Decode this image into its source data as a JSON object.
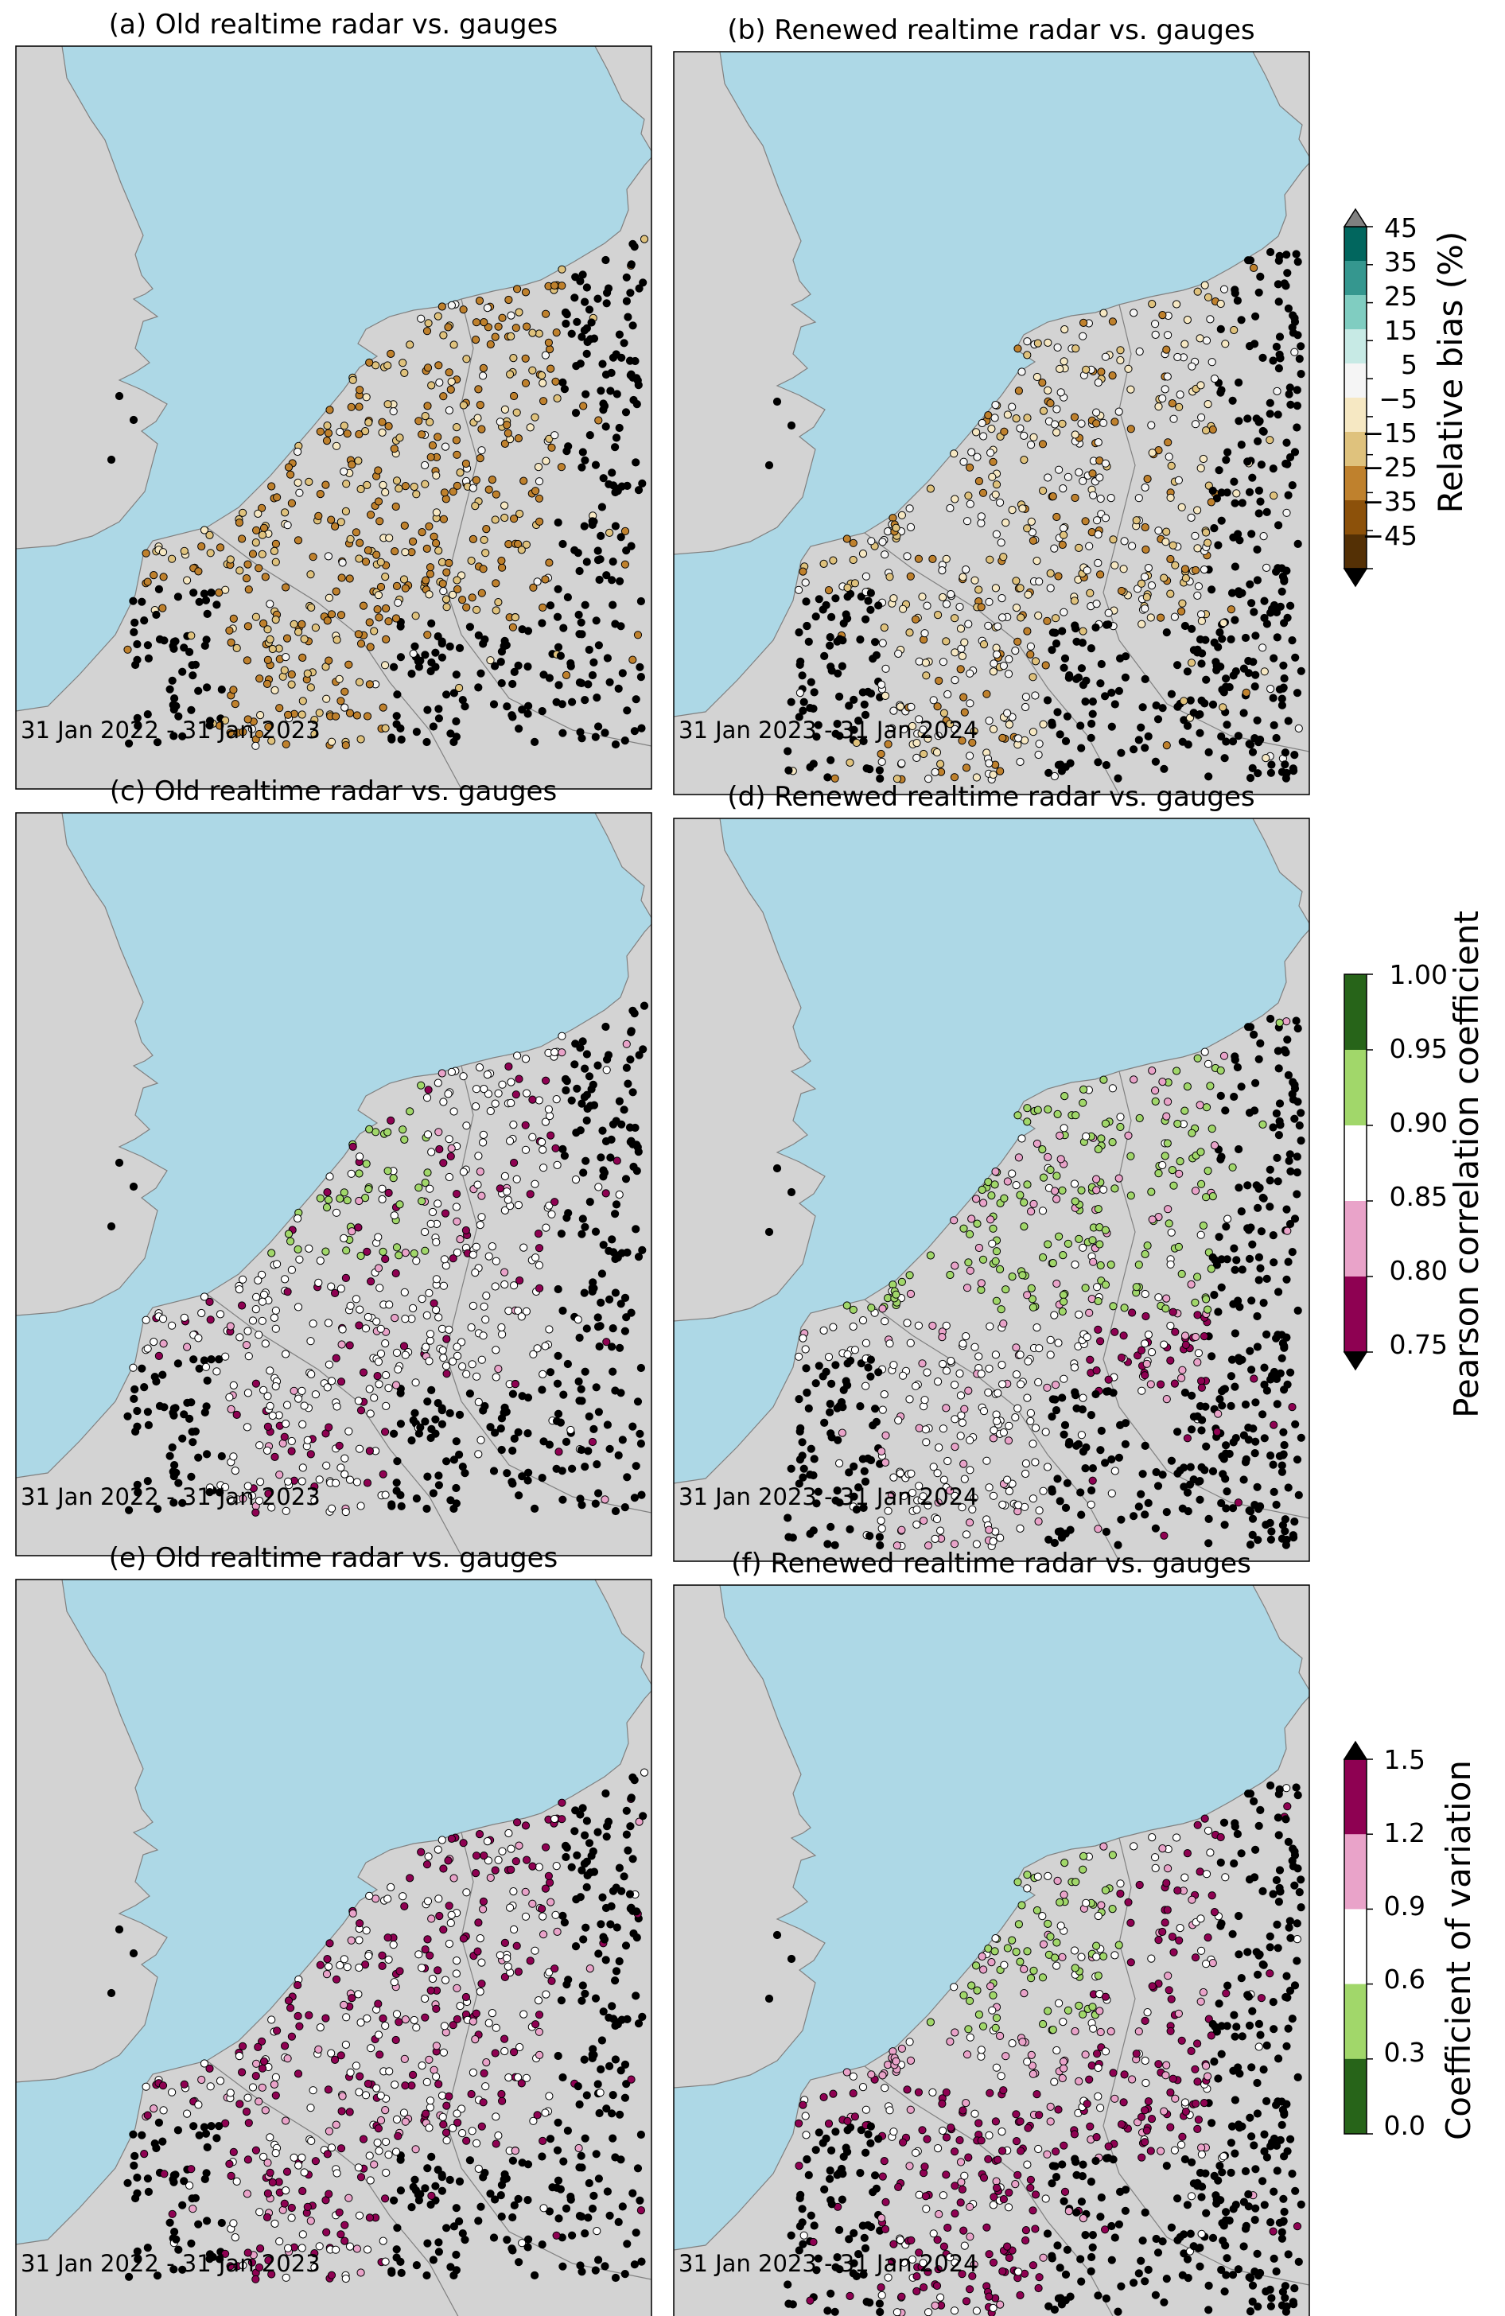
{
  "panels": [
    {
      "title": "(a) Old realtime radar vs. gauges",
      "period": "31 Jan 2022 - 31 Jan 2023",
      "metric": "bias",
      "variant": "old"
    },
    {
      "title": "(b) Renewed realtime radar vs. gauges",
      "period": "31 Jan 2023 - 31 Jan 2024",
      "metric": "bias",
      "variant": "renewed"
    },
    {
      "title": "(c) Old realtime radar vs. gauges",
      "period": "31 Jan 2022 - 31 Jan 2023",
      "metric": "corr",
      "variant": "old"
    },
    {
      "title": "(d) Renewed realtime radar vs. gauges",
      "period": "31 Jan 2023 - 31 Jan 2024",
      "metric": "corr",
      "variant": "renewed"
    },
    {
      "title": "(e) Old realtime radar vs. gauges",
      "period": "31 Jan 2022 - 31 Jan 2023",
      "metric": "cv",
      "variant": "old"
    },
    {
      "title": "(f) Renewed realtime radar vs. gauges",
      "period": "31 Jan 2023 - 31 Jan 2024",
      "metric": "cv",
      "variant": "renewed"
    }
  ],
  "colorbars": [
    {
      "label": "Relative bias (%)",
      "ticks": [
        "45",
        "35",
        "25",
        "15",
        "5",
        "−5",
        "−15",
        "−25",
        "−35",
        "−45"
      ],
      "colors_top_to_bottom": [
        "#01665e",
        "#35978f",
        "#80cdc1",
        "#c7eae5",
        "#f5f5f5",
        "#f6e8c3",
        "#dfc27d",
        "#bf812d",
        "#8c510a",
        "#543005"
      ],
      "over_color": "#808080",
      "under_color": "#000000"
    },
    {
      "label": "Pearson correlation coefficient",
      "ticks": [
        "1.00",
        "0.95",
        "0.90",
        "0.85",
        "0.80",
        "0.75"
      ],
      "colors_top_to_bottom": [
        "#276419",
        "#a1d76a",
        "#ffffff",
        "#e9a3c9",
        "#8e0152"
      ],
      "under_color": "#000000"
    },
    {
      "label": "Coefficient of variation",
      "ticks": [
        "1.5",
        "1.2",
        "0.9",
        "0.6",
        "0.3",
        "0.0"
      ],
      "colors_top_to_bottom": [
        "#8e0152",
        "#e9a3c9",
        "#ffffff",
        "#a1d76a",
        "#276419"
      ],
      "over_color": "#000000"
    }
  ],
  "colors": {
    "sea": "#add8e6",
    "land": "#d3d3d3",
    "border": "#808080",
    "no_data_marker": "#000000"
  }
}
